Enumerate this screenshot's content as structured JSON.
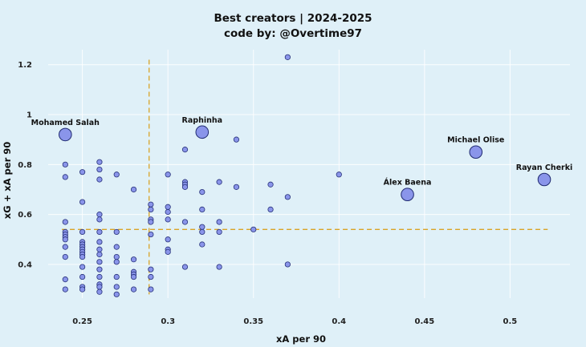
{
  "chart_data": {
    "type": "scatter",
    "title": "Best creators | 2024-2025",
    "subtitle": "code by: @Overtime97",
    "xlabel": "xA per 90",
    "ylabel": "xG + xA per 90",
    "xlim": [
      0.23,
      0.535
    ],
    "ylim": [
      0.265,
      1.26
    ],
    "xticks": [
      0.25,
      0.3,
      0.35,
      0.4,
      0.45,
      0.5
    ],
    "xtick_labels": [
      "0.25",
      "0.3",
      "0.35",
      "0.4",
      "0.45",
      "0.5"
    ],
    "yticks": [
      0.4,
      0.6,
      0.8,
      1.0,
      1.2
    ],
    "ytick_labels": [
      "0.4",
      "0.6",
      "0.8",
      "1",
      "1.2"
    ],
    "grid": true,
    "reference_lines": {
      "x_mean": 0.289,
      "y_mean": 0.54
    },
    "highlighted": [
      {
        "name": "Mohamed Salah",
        "x": 0.24,
        "y": 0.92
      },
      {
        "name": "Raphinha",
        "x": 0.32,
        "y": 0.93
      },
      {
        "name": "Michael Olise",
        "x": 0.48,
        "y": 0.85
      },
      {
        "name": "Rayan Cherki",
        "x": 0.52,
        "y": 0.74
      },
      {
        "name": "Álex Baena",
        "x": 0.44,
        "y": 0.68
      }
    ],
    "points": [
      [
        0.37,
        1.23
      ],
      [
        0.34,
        0.9
      ],
      [
        0.31,
        0.86
      ],
      [
        0.4,
        0.76
      ],
      [
        0.24,
        0.8
      ],
      [
        0.24,
        0.75
      ],
      [
        0.24,
        0.57
      ],
      [
        0.24,
        0.53
      ],
      [
        0.24,
        0.52
      ],
      [
        0.24,
        0.51
      ],
      [
        0.24,
        0.5
      ],
      [
        0.24,
        0.47
      ],
      [
        0.24,
        0.43
      ],
      [
        0.24,
        0.34
      ],
      [
        0.24,
        0.3
      ],
      [
        0.25,
        0.77
      ],
      [
        0.25,
        0.65
      ],
      [
        0.25,
        0.53
      ],
      [
        0.25,
        0.49
      ],
      [
        0.25,
        0.48
      ],
      [
        0.25,
        0.47
      ],
      [
        0.25,
        0.46
      ],
      [
        0.25,
        0.45
      ],
      [
        0.25,
        0.44
      ],
      [
        0.25,
        0.43
      ],
      [
        0.25,
        0.39
      ],
      [
        0.25,
        0.35
      ],
      [
        0.25,
        0.31
      ],
      [
        0.25,
        0.3
      ],
      [
        0.26,
        0.81
      ],
      [
        0.26,
        0.78
      ],
      [
        0.26,
        0.74
      ],
      [
        0.26,
        0.6
      ],
      [
        0.26,
        0.58
      ],
      [
        0.26,
        0.53
      ],
      [
        0.26,
        0.49
      ],
      [
        0.26,
        0.46
      ],
      [
        0.26,
        0.44
      ],
      [
        0.26,
        0.41
      ],
      [
        0.26,
        0.38
      ],
      [
        0.26,
        0.35
      ],
      [
        0.26,
        0.32
      ],
      [
        0.26,
        0.31
      ],
      [
        0.26,
        0.29
      ],
      [
        0.27,
        0.76
      ],
      [
        0.27,
        0.53
      ],
      [
        0.27,
        0.47
      ],
      [
        0.27,
        0.43
      ],
      [
        0.27,
        0.41
      ],
      [
        0.27,
        0.35
      ],
      [
        0.27,
        0.31
      ],
      [
        0.27,
        0.28
      ],
      [
        0.28,
        0.7
      ],
      [
        0.28,
        0.42
      ],
      [
        0.28,
        0.37
      ],
      [
        0.28,
        0.36
      ],
      [
        0.28,
        0.35
      ],
      [
        0.28,
        0.3
      ],
      [
        0.29,
        0.64
      ],
      [
        0.29,
        0.62
      ],
      [
        0.29,
        0.58
      ],
      [
        0.29,
        0.57
      ],
      [
        0.29,
        0.52
      ],
      [
        0.29,
        0.38
      ],
      [
        0.29,
        0.35
      ],
      [
        0.29,
        0.3
      ],
      [
        0.3,
        0.76
      ],
      [
        0.3,
        0.63
      ],
      [
        0.3,
        0.61
      ],
      [
        0.3,
        0.58
      ],
      [
        0.3,
        0.5
      ],
      [
        0.3,
        0.46
      ],
      [
        0.3,
        0.45
      ],
      [
        0.31,
        0.73
      ],
      [
        0.31,
        0.72
      ],
      [
        0.31,
        0.71
      ],
      [
        0.31,
        0.57
      ],
      [
        0.31,
        0.39
      ],
      [
        0.32,
        0.69
      ],
      [
        0.32,
        0.62
      ],
      [
        0.32,
        0.55
      ],
      [
        0.32,
        0.53
      ],
      [
        0.32,
        0.48
      ],
      [
        0.33,
        0.73
      ],
      [
        0.33,
        0.57
      ],
      [
        0.33,
        0.53
      ],
      [
        0.33,
        0.39
      ],
      [
        0.34,
        0.71
      ],
      [
        0.35,
        0.54
      ],
      [
        0.36,
        0.72
      ],
      [
        0.36,
        0.62
      ],
      [
        0.37,
        0.67
      ],
      [
        0.37,
        0.4
      ]
    ]
  }
}
